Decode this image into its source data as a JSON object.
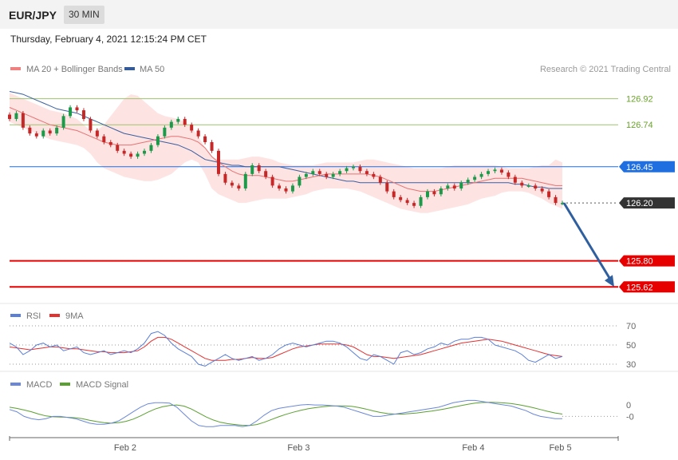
{
  "header": {
    "symbol": "EUR/JPY",
    "timeframe": "30 MIN"
  },
  "date_line": "Thursday, February 4, 2021 12:15:24 PM CET",
  "copyright": "Research © 2021 Trading Central",
  "colors": {
    "resistance": "#6aa22c",
    "pivot": "#1f6fe0",
    "support": "#e60000",
    "price": "#333333",
    "band": "#fdd9d9",
    "ma20": "#e67373",
    "ma50": "#3a5f9f",
    "rsi": "#5b7fd6",
    "ma9": "#e53030",
    "macd": "#6b88d8",
    "signal": "#5aa030",
    "bull": "#1c9a4a",
    "bear": "#c62828",
    "arrow": "#2f5f9e"
  },
  "chart_data": [
    {
      "type": "candlestick",
      "legend": [
        {
          "name": "MA 20 + Bollinger Bands",
          "color": "#f08080"
        },
        {
          "name": "MA 50",
          "color": "#355a99"
        }
      ],
      "ylim": [
        125.55,
        127.05
      ],
      "levels": [
        {
          "label": "126.92",
          "value": 126.92,
          "kind": "resistance"
        },
        {
          "label": "126.74",
          "value": 126.74,
          "kind": "resistance"
        },
        {
          "label": "126.45",
          "value": 126.45,
          "kind": "pivot"
        },
        {
          "label": "126.20",
          "value": 126.2,
          "kind": "price"
        },
        {
          "label": "125.80",
          "value": 125.8,
          "kind": "support"
        },
        {
          "label": "125.62",
          "value": 125.62,
          "kind": "support"
        }
      ],
      "closes": [
        126.78,
        126.82,
        126.72,
        126.68,
        126.66,
        126.7,
        126.68,
        126.72,
        126.8,
        126.86,
        126.84,
        126.78,
        126.7,
        126.66,
        126.62,
        126.6,
        126.56,
        126.54,
        126.52,
        126.54,
        126.56,
        126.6,
        126.66,
        126.72,
        126.76,
        126.78,
        126.74,
        126.7,
        126.66,
        126.62,
        126.56,
        126.4,
        126.34,
        126.32,
        126.3,
        126.4,
        126.46,
        126.42,
        126.38,
        126.32,
        126.3,
        126.28,
        126.32,
        126.38,
        126.4,
        126.42,
        126.4,
        126.38,
        126.4,
        126.42,
        126.44,
        126.45,
        126.42,
        126.4,
        126.38,
        126.34,
        126.28,
        126.24,
        126.22,
        126.2,
        126.18,
        126.24,
        126.28,
        126.26,
        126.3,
        126.32,
        126.3,
        126.34,
        126.36,
        126.38,
        126.4,
        126.42,
        126.43,
        126.41,
        126.38,
        126.34,
        126.32,
        126.32,
        126.3,
        126.28,
        126.24,
        126.2,
        126.2
      ],
      "bollinger": {
        "upper": [
          126.96,
          126.94,
          126.92,
          126.9,
          126.88,
          126.86,
          126.84,
          126.83,
          126.82,
          126.8,
          126.78,
          126.74,
          126.7,
          126.7,
          126.74,
          126.8,
          126.86,
          126.92,
          126.95,
          126.94,
          126.9,
          126.86,
          126.82,
          126.8,
          126.79,
          126.78,
          126.76,
          126.72,
          126.66,
          126.58,
          126.52,
          126.5,
          126.5,
          126.5,
          126.5,
          126.51,
          126.52,
          126.52,
          126.51,
          126.5,
          126.48,
          126.47,
          126.46,
          126.46,
          126.46,
          126.46,
          126.47,
          126.48,
          126.48,
          126.48,
          126.48,
          126.48,
          126.49,
          126.5,
          126.5,
          126.49,
          126.48,
          126.47,
          126.46,
          126.45,
          126.44,
          126.44,
          126.44,
          126.44,
          126.44,
          126.45,
          126.46,
          126.46,
          126.46,
          126.46,
          126.46,
          126.46,
          126.46,
          126.45,
          126.44,
          126.44,
          126.44,
          126.44,
          126.45,
          126.46,
          126.46,
          126.5,
          126.48
        ],
        "middle": [
          126.86,
          126.84,
          126.82,
          126.8,
          126.78,
          126.76,
          126.74,
          126.73,
          126.72,
          126.71,
          126.7,
          126.68,
          126.66,
          126.64,
          126.62,
          126.61,
          126.6,
          126.6,
          126.6,
          126.61,
          126.62,
          126.63,
          126.64,
          126.65,
          126.66,
          126.66,
          126.65,
          126.64,
          126.62,
          126.58,
          126.52,
          126.48,
          126.45,
          126.42,
          126.4,
          126.39,
          126.39,
          126.39,
          126.38,
          126.37,
          126.36,
          126.35,
          126.35,
          126.36,
          126.37,
          126.38,
          126.39,
          126.4,
          126.4,
          126.4,
          126.4,
          126.4,
          126.4,
          126.4,
          126.39,
          126.38,
          126.36,
          126.34,
          126.32,
          126.3,
          126.29,
          126.28,
          126.28,
          126.28,
          126.29,
          126.3,
          126.31,
          126.32,
          126.33,
          126.34,
          126.35,
          126.36,
          126.37,
          126.37,
          126.37,
          126.37,
          126.37,
          126.36,
          126.35,
          126.34,
          126.33,
          126.32,
          126.32
        ],
        "lower": [
          126.76,
          126.74,
          126.72,
          126.7,
          126.68,
          126.66,
          126.64,
          126.63,
          126.62,
          126.61,
          126.6,
          126.58,
          126.54,
          126.48,
          126.44,
          126.42,
          126.4,
          126.38,
          126.37,
          126.36,
          126.35,
          126.35,
          126.36,
          126.38,
          126.4,
          126.44,
          126.48,
          126.5,
          126.48,
          126.4,
          126.3,
          126.26,
          126.24,
          126.22,
          126.2,
          126.2,
          126.21,
          126.22,
          126.23,
          126.23,
          126.23,
          126.23,
          126.24,
          126.25,
          126.26,
          126.28,
          126.29,
          126.3,
          126.3,
          126.3,
          126.3,
          126.29,
          126.28,
          126.26,
          126.24,
          126.22,
          126.2,
          126.18,
          126.16,
          126.15,
          126.14,
          126.13,
          126.13,
          126.14,
          126.15,
          126.16,
          126.17,
          126.18,
          126.19,
          126.21,
          126.23,
          126.24,
          126.25,
          126.27,
          126.28,
          126.28,
          126.28,
          126.27,
          126.25,
          126.23,
          126.2,
          126.18,
          126.16
        ]
      },
      "ma20": [
        126.86,
        126.84,
        126.82,
        126.8,
        126.78,
        126.76,
        126.74,
        126.73,
        126.72,
        126.71,
        126.7,
        126.68,
        126.66,
        126.64,
        126.62,
        126.61,
        126.6,
        126.6,
        126.6,
        126.61,
        126.62,
        126.63,
        126.64,
        126.65,
        126.66,
        126.66,
        126.65,
        126.64,
        126.62,
        126.58,
        126.52,
        126.48,
        126.45,
        126.42,
        126.4,
        126.39,
        126.39,
        126.39,
        126.38,
        126.37,
        126.36,
        126.35,
        126.35,
        126.36,
        126.37,
        126.38,
        126.39,
        126.4,
        126.4,
        126.4,
        126.4,
        126.4,
        126.4,
        126.4,
        126.39,
        126.38,
        126.36,
        126.34,
        126.32,
        126.3,
        126.29,
        126.28,
        126.28,
        126.28,
        126.29,
        126.3,
        126.31,
        126.32,
        126.33,
        126.34,
        126.35,
        126.36,
        126.37,
        126.37,
        126.37,
        126.37,
        126.37,
        126.36,
        126.35,
        126.34,
        126.33,
        126.32,
        126.32
      ],
      "ma50": [
        126.97,
        126.96,
        126.95,
        126.93,
        126.91,
        126.89,
        126.87,
        126.85,
        126.84,
        126.83,
        126.82,
        126.8,
        126.78,
        126.76,
        126.74,
        126.72,
        126.7,
        126.68,
        126.67,
        126.66,
        126.65,
        126.64,
        126.63,
        126.62,
        126.61,
        126.6,
        126.58,
        126.56,
        126.53,
        126.5,
        126.49,
        126.48,
        126.47,
        126.46,
        126.46,
        126.45,
        126.45,
        126.45,
        126.45,
        126.45,
        126.45,
        126.44,
        126.43,
        126.42,
        126.41,
        126.4,
        126.39,
        126.38,
        126.37,
        126.36,
        126.35,
        126.35,
        126.34,
        126.34,
        126.34,
        126.34,
        126.34,
        126.34,
        126.34,
        126.34,
        126.34,
        126.34,
        126.34,
        126.34,
        126.34,
        126.34,
        126.34,
        126.34,
        126.34,
        126.34,
        126.34,
        126.34,
        126.34,
        126.34,
        126.34,
        126.33,
        126.33,
        126.32,
        126.31,
        126.31,
        126.3,
        126.3,
        126.3
      ],
      "forecast_arrow": {
        "from": 126.2,
        "to": 125.62
      }
    },
    {
      "type": "line",
      "legend": [
        {
          "name": "RSI",
          "color": "#5b7fd6"
        },
        {
          "name": "9MA",
          "color": "#e53030"
        }
      ],
      "ylim": [
        25,
        75
      ],
      "ticks": [
        {
          "label": "70",
          "value": 70
        },
        {
          "label": "50",
          "value": 50
        },
        {
          "label": "30",
          "value": 30
        }
      ],
      "series": [
        {
          "name": "RSI",
          "values": [
            52,
            48,
            40,
            44,
            50,
            52,
            48,
            50,
            44,
            46,
            48,
            42,
            40,
            42,
            44,
            40,
            42,
            44,
            42,
            46,
            52,
            62,
            64,
            60,
            52,
            46,
            42,
            38,
            30,
            28,
            32,
            36,
            40,
            36,
            34,
            36,
            38,
            34,
            36,
            40,
            46,
            50,
            52,
            50,
            48,
            50,
            52,
            54,
            54,
            52,
            48,
            42,
            36,
            34,
            40,
            38,
            34,
            30,
            42,
            44,
            40,
            42,
            46,
            48,
            52,
            50,
            54,
            56,
            56,
            58,
            58,
            56,
            50,
            48,
            46,
            44,
            40,
            34,
            32,
            36,
            40,
            36,
            38
          ]
        },
        {
          "name": "9MA",
          "values": [
            48,
            47,
            46,
            45,
            46,
            47,
            48,
            48,
            47,
            46,
            46,
            45,
            44,
            43,
            43,
            42,
            42,
            42,
            43,
            44,
            48,
            54,
            58,
            58,
            56,
            52,
            48,
            44,
            40,
            36,
            34,
            34,
            34,
            35,
            35,
            36,
            37,
            36,
            36,
            37,
            40,
            43,
            46,
            48,
            49,
            50,
            51,
            51,
            51,
            51,
            50,
            48,
            44,
            40,
            38,
            38,
            37,
            36,
            37,
            38,
            39,
            40,
            42,
            44,
            46,
            48,
            50,
            52,
            53,
            54,
            55,
            56,
            55,
            54,
            52,
            50,
            48,
            46,
            44,
            42,
            40,
            39,
            38
          ]
        }
      ]
    },
    {
      "type": "line",
      "legend": [
        {
          "name": "MACD",
          "color": "#6b88d8"
        },
        {
          "name": "MACD Signal",
          "color": "#5aa030"
        }
      ],
      "ylim": [
        -0.1,
        0.1
      ],
      "ticks": [
        {
          "label": "0",
          "value": 0.04
        },
        {
          "label": "-0",
          "value": -0.01
        }
      ],
      "series": [
        {
          "name": "MACD",
          "values": [
            0.02,
            0.01,
            -0.01,
            -0.02,
            -0.025,
            -0.02,
            -0.01,
            -0.01,
            -0.015,
            -0.02,
            -0.03,
            -0.04,
            -0.045,
            -0.045,
            -0.04,
            -0.03,
            -0.01,
            0.01,
            0.03,
            0.045,
            0.05,
            0.05,
            0.048,
            0.03,
            0.0,
            -0.03,
            -0.05,
            -0.055,
            -0.055,
            -0.05,
            -0.05,
            -0.05,
            -0.055,
            -0.05,
            -0.03,
            -0.005,
            0.015,
            0.025,
            0.03,
            0.035,
            0.04,
            0.042,
            0.04,
            0.04,
            0.038,
            0.035,
            0.03,
            0.02,
            0.01,
            0.0,
            -0.01,
            -0.01,
            -0.005,
            -0.0,
            0.005,
            0.01,
            0.015,
            0.02,
            0.025,
            0.03,
            0.04,
            0.05,
            0.055,
            0.06,
            0.06,
            0.055,
            0.05,
            0.045,
            0.04,
            0.035,
            0.025,
            0.015,
            0.0,
            -0.01,
            -0.015,
            -0.02,
            -0.02
          ]
        },
        {
          "name": "MACD Signal",
          "values": [
            0.03,
            0.025,
            0.018,
            0.01,
            0.0,
            -0.008,
            -0.012,
            -0.013,
            -0.014,
            -0.016,
            -0.02,
            -0.027,
            -0.033,
            -0.038,
            -0.04,
            -0.038,
            -0.032,
            -0.022,
            -0.008,
            0.008,
            0.022,
            0.032,
            0.038,
            0.04,
            0.035,
            0.022,
            0.005,
            -0.012,
            -0.026,
            -0.036,
            -0.042,
            -0.046,
            -0.049,
            -0.05,
            -0.046,
            -0.036,
            -0.024,
            -0.012,
            -0.001,
            0.008,
            0.016,
            0.023,
            0.028,
            0.032,
            0.035,
            0.036,
            0.036,
            0.034,
            0.029,
            0.022,
            0.014,
            0.007,
            0.002,
            0.0,
            0.0,
            0.002,
            0.005,
            0.009,
            0.013,
            0.018,
            0.024,
            0.03,
            0.037,
            0.043,
            0.048,
            0.051,
            0.052,
            0.051,
            0.049,
            0.046,
            0.041,
            0.035,
            0.028,
            0.02,
            0.012,
            0.005,
            0.0
          ]
        }
      ]
    }
  ],
  "x_axis": {
    "labels": [
      {
        "label": "Feb 2",
        "pos": 0.19
      },
      {
        "label": "Feb 3",
        "pos": 0.475
      },
      {
        "label": "Feb 4",
        "pos": 0.762
      },
      {
        "label": "Feb 5",
        "pos": 0.905
      }
    ]
  }
}
